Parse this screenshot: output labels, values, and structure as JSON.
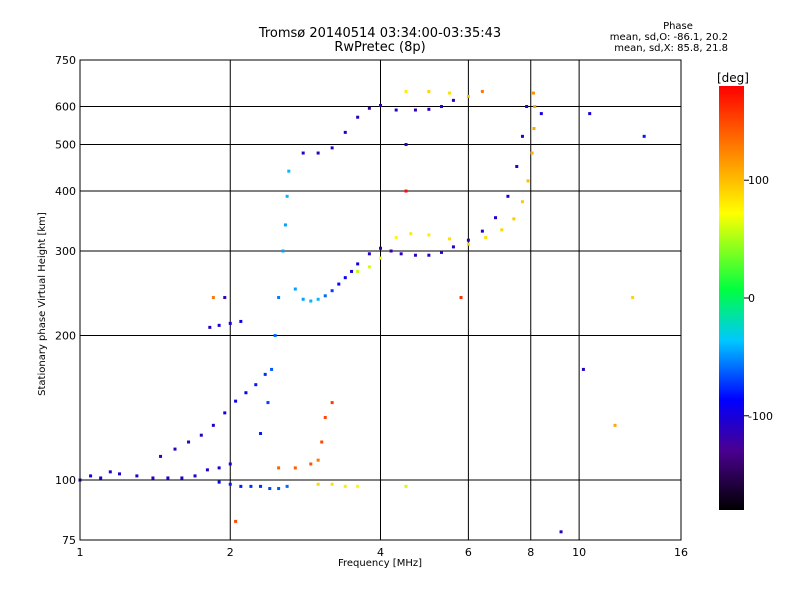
{
  "header": {
    "title_line1": "Tromsø 20140514 03:34:00-03:35:43",
    "title_line2": "RwPretec (8p)"
  },
  "phase_stats": {
    "title": "Phase",
    "line_o": "mean, sd,O: -86.1, 20.2",
    "line_x": "mean, sd,X:  85.8, 21.8"
  },
  "colorbar": {
    "unit": "[deg]",
    "ticks": [
      "100",
      "0",
      "-100"
    ],
    "range": [
      -180,
      180
    ]
  },
  "chart_data": {
    "type": "scatter",
    "title": "Tromsø 20140514 03:34:00-03:35:43",
    "subtitle": "RwPretec (8p)",
    "xlabel": "Frequency [MHz]",
    "ylabel": "Stationary phase Virtual Height [km]",
    "x_scale": "log",
    "y_scale": "log",
    "xlim": [
      1,
      16
    ],
    "ylim": [
      75,
      750
    ],
    "x_ticks": [
      "1",
      "2",
      "4",
      "6",
      "8",
      "10",
      "16"
    ],
    "y_ticks": [
      "75",
      "100",
      "200",
      "300",
      "400",
      "500",
      "600",
      "750"
    ],
    "grid": true,
    "color_encoding": "phase [deg]",
    "series": [
      {
        "values": [
          [
            1.0,
            100,
            -110
          ],
          [
            1.05,
            102,
            -100
          ],
          [
            1.1,
            101,
            -110
          ],
          [
            1.15,
            104,
            -105
          ],
          [
            1.2,
            103,
            -110
          ],
          [
            1.3,
            102,
            -110
          ],
          [
            1.4,
            101,
            -115
          ],
          [
            1.5,
            101,
            -110
          ],
          [
            1.6,
            101,
            -110
          ],
          [
            1.7,
            102,
            -105
          ],
          [
            1.8,
            105,
            -110
          ],
          [
            1.9,
            106,
            -100
          ],
          [
            2.0,
            108,
            -95
          ]
        ]
      },
      {
        "values": [
          [
            1.45,
            112,
            -115
          ],
          [
            1.55,
            116,
            -110
          ],
          [
            1.65,
            120,
            -115
          ],
          [
            1.75,
            124,
            -110
          ],
          [
            1.85,
            130,
            -105
          ],
          [
            1.95,
            138,
            -100
          ],
          [
            2.05,
            146,
            -95
          ],
          [
            2.15,
            152,
            -90
          ],
          [
            2.25,
            158,
            -80
          ],
          [
            2.35,
            166,
            -75
          ]
        ]
      },
      {
        "values": [
          [
            1.9,
            99,
            -85
          ],
          [
            2.0,
            98,
            -80
          ],
          [
            2.1,
            97,
            -80
          ],
          [
            2.2,
            97,
            -75
          ],
          [
            2.3,
            97,
            -75
          ],
          [
            2.4,
            96,
            -70
          ],
          [
            2.5,
            96,
            -65
          ],
          [
            2.6,
            97,
            -60
          ]
        ]
      },
      {
        "values": [
          [
            2.3,
            125,
            -80
          ],
          [
            2.38,
            145,
            -70
          ],
          [
            2.42,
            170,
            -65
          ],
          [
            2.46,
            200,
            -60
          ],
          [
            2.5,
            240,
            -55
          ],
          [
            2.55,
            300,
            -45
          ],
          [
            2.58,
            340,
            -45
          ],
          [
            2.6,
            390,
            -40
          ],
          [
            2.62,
            440,
            -40
          ]
        ]
      },
      {
        "values": [
          [
            1.82,
            208,
            -110
          ],
          [
            1.9,
            210,
            -105
          ],
          [
            2.0,
            212,
            -100
          ],
          [
            2.1,
            214,
            -95
          ],
          [
            1.95,
            240,
            -115
          ]
        ]
      },
      {
        "values": [
          [
            2.7,
            250,
            -45
          ],
          [
            2.8,
            238,
            -45
          ],
          [
            2.9,
            236,
            -40
          ],
          [
            3.0,
            238,
            -40
          ],
          [
            3.1,
            242,
            -60
          ],
          [
            3.2,
            248,
            -70
          ],
          [
            3.3,
            256,
            -85
          ],
          [
            3.4,
            264,
            -90
          ],
          [
            3.5,
            272,
            -100
          ],
          [
            3.6,
            282,
            -100
          ],
          [
            3.8,
            296,
            -110
          ],
          [
            4.0,
            304,
            -115
          ],
          [
            4.2,
            300,
            -115
          ],
          [
            4.4,
            296,
            -110
          ],
          [
            4.7,
            294,
            -115
          ],
          [
            5.0,
            294,
            -110
          ],
          [
            5.3,
            298,
            -110
          ],
          [
            5.6,
            306,
            -110
          ],
          [
            6.0,
            316,
            -110
          ],
          [
            6.4,
            330,
            -105
          ],
          [
            6.8,
            352,
            -110
          ],
          [
            7.2,
            390,
            -105
          ],
          [
            7.5,
            450,
            -110
          ],
          [
            7.7,
            520,
            -110
          ],
          [
            7.85,
            600,
            -105
          ]
        ]
      },
      {
        "values": [
          [
            3.6,
            272,
            55
          ],
          [
            3.8,
            278,
            60
          ],
          [
            4.0,
            290,
            70
          ],
          [
            4.3,
            320,
            75
          ],
          [
            4.6,
            326,
            80
          ],
          [
            5.0,
            324,
            80
          ],
          [
            5.5,
            318,
            85
          ],
          [
            6.0,
            310,
            90
          ],
          [
            6.5,
            320,
            85
          ],
          [
            7.0,
            332,
            90
          ],
          [
            7.4,
            350,
            95
          ],
          [
            7.7,
            380,
            95
          ],
          [
            7.9,
            420,
            100
          ],
          [
            8.05,
            480,
            105
          ],
          [
            8.12,
            540,
            110
          ],
          [
            8.15,
            600,
            110
          ],
          [
            8.1,
            640,
            120
          ]
        ]
      },
      {
        "values": [
          [
            2.8,
            480,
            -110
          ],
          [
            3.0,
            480,
            -110
          ],
          [
            3.2,
            492,
            -110
          ],
          [
            3.4,
            530,
            -105
          ],
          [
            3.6,
            570,
            -110
          ],
          [
            3.8,
            595,
            -115
          ],
          [
            4.0,
            603,
            -115
          ],
          [
            4.3,
            590,
            -110
          ],
          [
            4.7,
            590,
            -115
          ],
          [
            5.0,
            592,
            -110
          ],
          [
            5.3,
            600,
            -105
          ],
          [
            5.6,
            618,
            -110
          ]
        ]
      },
      {
        "values": [
          [
            4.5,
            645,
            80
          ],
          [
            5.0,
            645,
            90
          ],
          [
            5.5,
            640,
            85
          ],
          [
            6.0,
            630,
            100
          ],
          [
            6.4,
            645,
            130
          ]
        ]
      },
      {
        "values": [
          [
            2.5,
            106,
            140
          ],
          [
            2.7,
            106,
            140
          ],
          [
            2.9,
            108,
            145
          ],
          [
            3.0,
            110,
            130
          ],
          [
            3.05,
            120,
            150
          ],
          [
            3.1,
            135,
            150
          ],
          [
            3.2,
            145,
            155
          ]
        ]
      },
      {
        "values": [
          [
            3.0,
            98,
            90
          ],
          [
            3.2,
            98,
            85
          ],
          [
            3.4,
            97,
            80
          ],
          [
            3.6,
            97,
            75
          ],
          [
            4.5,
            97,
            60
          ]
        ]
      },
      {
        "values": [
          [
            4.5,
            400,
            175
          ],
          [
            4.5,
            500,
            -110
          ],
          [
            5.8,
            240,
            160
          ],
          [
            8.4,
            580,
            -100
          ],
          [
            9.2,
            78,
            -110
          ],
          [
            10.2,
            170,
            -110
          ],
          [
            10.5,
            580,
            -100
          ],
          [
            11.8,
            130,
            110
          ],
          [
            12.8,
            240,
            90
          ],
          [
            13.5,
            520,
            -80
          ],
          [
            1.85,
            240,
            130
          ],
          [
            2.05,
            82,
            150
          ]
        ]
      }
    ]
  }
}
